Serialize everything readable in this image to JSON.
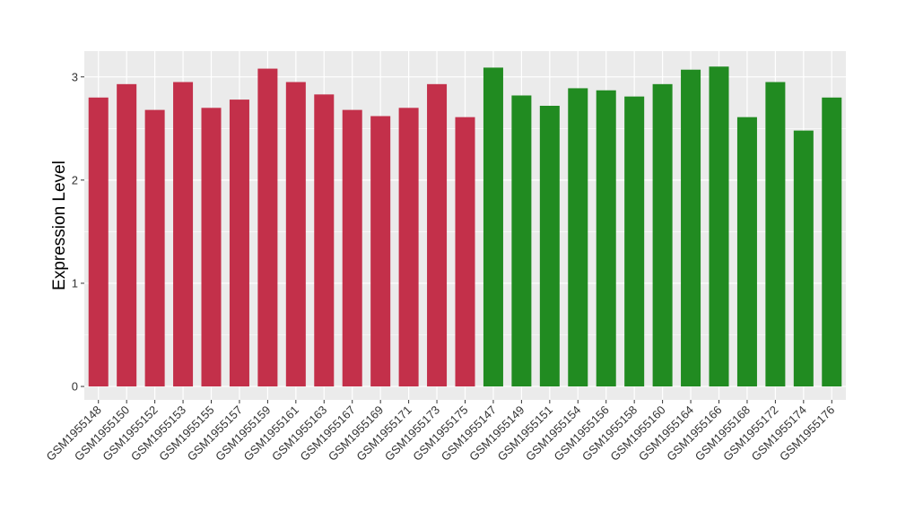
{
  "chart_data": {
    "type": "bar",
    "ylabel": "Expression Level",
    "xlabel": "",
    "ylim": [
      -0.13,
      3.25
    ],
    "yticks": [
      0,
      1,
      2,
      3
    ],
    "grid": true,
    "legend": "none",
    "background": "#ebebeb",
    "gridColor": "#ffffff",
    "categories": [
      "GSM1955148",
      "GSM1955150",
      "GSM1955152",
      "GSM1955153",
      "GSM1955155",
      "GSM1955157",
      "GSM1955159",
      "GSM1955161",
      "GSM1955163",
      "GSM1955167",
      "GSM1955169",
      "GSM1955171",
      "GSM1955173",
      "GSM1955175",
      "GSM1955147",
      "GSM1955149",
      "GSM1955151",
      "GSM1955154",
      "GSM1955156",
      "GSM1955158",
      "GSM1955160",
      "GSM1955164",
      "GSM1955166",
      "GSM1955168",
      "GSM1955172",
      "GSM1955174",
      "GSM1955176"
    ],
    "values": [
      2.8,
      2.93,
      2.68,
      2.95,
      2.7,
      2.78,
      3.08,
      2.95,
      2.83,
      2.68,
      2.62,
      2.7,
      2.93,
      2.61,
      3.09,
      2.82,
      2.72,
      2.89,
      2.87,
      2.81,
      2.93,
      3.07,
      3.1,
      2.61,
      2.95,
      2.48,
      2.8
    ],
    "colors": [
      "#c3304a",
      "#c3304a",
      "#c3304a",
      "#c3304a",
      "#c3304a",
      "#c3304a",
      "#c3304a",
      "#c3304a",
      "#c3304a",
      "#c3304a",
      "#c3304a",
      "#c3304a",
      "#c3304a",
      "#c3304a",
      "#218b21",
      "#218b21",
      "#218b21",
      "#218b21",
      "#218b21",
      "#218b21",
      "#218b21",
      "#218b21",
      "#218b21",
      "#218b21",
      "#218b21",
      "#218b21",
      "#218b21"
    ]
  }
}
